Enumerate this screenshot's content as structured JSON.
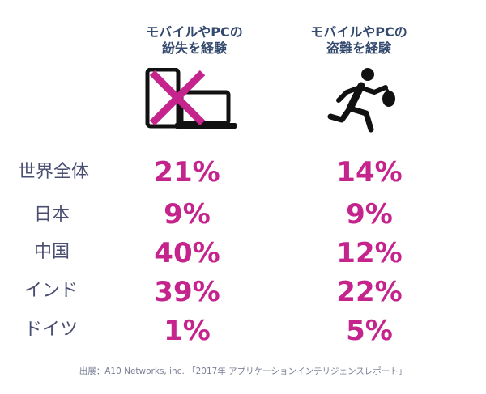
{
  "chart_data": {
    "type": "table",
    "columns": [
      {
        "header_line1": "モバイルやPCの",
        "header_line2": "紛失を経験",
        "icon": "lost-devices-icon"
      },
      {
        "header_line1": "モバイルやPCの",
        "header_line2": "盗難を経験",
        "icon": "theft-runner-icon"
      }
    ],
    "rows": [
      {
        "label": "世界全体",
        "values": [
          "21%",
          "14%"
        ]
      },
      {
        "label": "日本",
        "values": [
          "9%",
          "9%"
        ]
      },
      {
        "label": "中国",
        "values": [
          "40%",
          "12%"
        ]
      },
      {
        "label": "インド",
        "values": [
          "39%",
          "22%"
        ]
      },
      {
        "label": "ドイツ",
        "values": [
          "1%",
          "5%"
        ]
      }
    ],
    "source": "出展：A10 Networks, inc. 「2017年 アプリケーションインテリジェンスレポート」"
  },
  "colors": {
    "value": "#c4248c",
    "header": "#34496e",
    "label": "#4a4f72",
    "icon": "#111111",
    "cross": "#c4248c"
  }
}
